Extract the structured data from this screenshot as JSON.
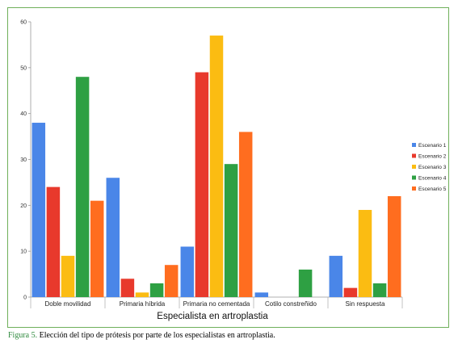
{
  "chart_data": {
    "type": "bar",
    "xlabel": "Especialista en artroplastia",
    "ylabel": "",
    "ylim": [
      0,
      60
    ],
    "yticks": [
      0,
      10,
      20,
      30,
      40,
      50,
      60
    ],
    "grid": false,
    "legend_position": "right",
    "categories": [
      "Doble movilidad",
      "Primaria híbrida",
      "Primaria no cementada",
      "Cotilo constreñido",
      "Sin respuesta"
    ],
    "series": [
      {
        "name": "Escenario 1",
        "color": "#4a86e8",
        "values": [
          38,
          26,
          11,
          1,
          9
        ]
      },
      {
        "name": "Escenario 2",
        "color": "#e8392c",
        "values": [
          24,
          4,
          49,
          0,
          2
        ]
      },
      {
        "name": "Escenario 3",
        "color": "#fbbc12",
        "values": [
          9,
          1,
          57,
          0,
          19
        ]
      },
      {
        "name": "Escenario 4",
        "color": "#2ea043",
        "values": [
          48,
          3,
          29,
          6,
          3
        ]
      },
      {
        "name": "Escenario 5",
        "color": "#ff6d1f",
        "values": [
          21,
          7,
          36,
          0,
          22
        ]
      }
    ]
  },
  "caption": {
    "label": "Figura 5.",
    "text": " Elección del tipo de prótesis por parte de los especialistas en artroplastia."
  },
  "frame_color": "#6fb05a"
}
